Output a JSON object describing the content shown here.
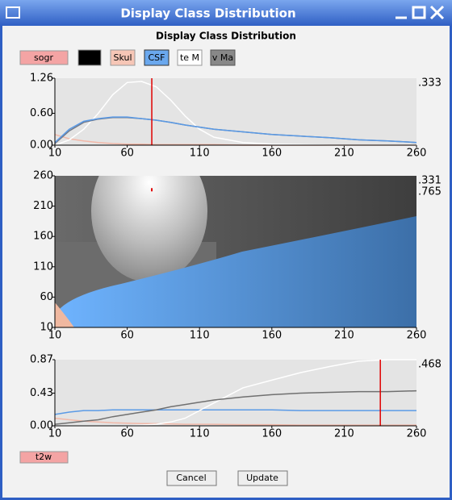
{
  "window": {
    "title": "Display Class Distribution"
  },
  "header": {
    "title": "Display Class Distribution"
  },
  "toolbar": {
    "left_button": "sogr",
    "class_buttons": [
      "Skul",
      "CSF",
      "te M",
      "v Ma"
    ]
  },
  "bottom_button": "t2w",
  "actions": [
    "Cancel",
    "Update"
  ],
  "chart_data": [
    {
      "type": "line",
      "x": [
        10,
        20,
        30,
        40,
        50,
        60,
        70,
        80,
        90,
        100,
        110,
        120,
        140,
        160,
        180,
        200,
        220,
        240,
        260
      ],
      "series": [
        {
          "color": "#f2b8a8",
          "values": [
            0.2,
            0.12,
            0.08,
            0.05,
            0.03,
            0.02,
            0.02,
            0.01,
            0.01,
            0.01,
            0.01,
            0.01,
            0,
            0,
            0,
            0,
            0,
            0,
            0
          ]
        },
        {
          "color": "#ffffff",
          "values": [
            0,
            0.1,
            0.3,
            0.6,
            0.95,
            1.18,
            1.2,
            1.1,
            0.85,
            0.55,
            0.3,
            0.15,
            0.05,
            0.02,
            0.01,
            0,
            0,
            0,
            0
          ]
        },
        {
          "color": "#707888",
          "values": [
            0.03,
            0.27,
            0.43,
            0.49,
            0.52,
            0.52,
            0.5,
            0.47,
            0.43,
            0.38,
            0.34,
            0.3,
            0.25,
            0.2,
            0.17,
            0.14,
            0.1,
            0.08,
            0.05
          ]
        },
        {
          "color": "#5a9ae6",
          "values": [
            0.05,
            0.3,
            0.45,
            0.5,
            0.53,
            0.53,
            0.5,
            0.47,
            0.43,
            0.38,
            0.34,
            0.3,
            0.25,
            0.2,
            0.17,
            0.14,
            0.1,
            0.08,
            0.05
          ]
        }
      ],
      "marker_x": 77,
      "marker_color": "#e00000",
      "xlim": [
        10,
        260
      ],
      "xticks": [
        10,
        60,
        110,
        160,
        210,
        260
      ],
      "ylim": [
        0,
        1.26
      ],
      "yticks": [
        {
          "value": 0,
          "label": "0.00"
        },
        {
          "value": 0.6,
          "label": "0.60"
        },
        {
          "value": 1.26,
          "label": "1.26"
        }
      ],
      "right_labels": [
        ".333"
      ]
    },
    {
      "type": "image",
      "marker": {
        "x": 77,
        "y": 237
      },
      "marker_color": "#e00000",
      "xlim": [
        10,
        260
      ],
      "xticks": [
        10,
        60,
        110,
        160,
        210,
        260
      ],
      "ylim": [
        10,
        260
      ],
      "yticks": [
        10,
        60,
        110,
        160,
        210,
        260
      ],
      "right_labels": [
        ".331",
        ".765"
      ]
    },
    {
      "type": "line",
      "x": [
        10,
        20,
        30,
        40,
        50,
        60,
        70,
        80,
        90,
        100,
        110,
        120,
        140,
        160,
        180,
        200,
        220,
        240,
        260
      ],
      "series": [
        {
          "color": "#f2b8a8",
          "values": [
            0.1,
            0.08,
            0.06,
            0.05,
            0.04,
            0.035,
            0.03,
            0.03,
            0.025,
            0.02,
            0.02,
            0.02,
            0.015,
            0.015,
            0.01,
            0.01,
            0.01,
            0.01,
            0.01
          ]
        },
        {
          "color": "#5a9ae6",
          "values": [
            0.15,
            0.18,
            0.2,
            0.2,
            0.21,
            0.21,
            0.21,
            0.21,
            0.21,
            0.21,
            0.21,
            0.21,
            0.21,
            0.21,
            0.2,
            0.2,
            0.2,
            0.2,
            0.2
          ]
        },
        {
          "color": "#ffffff",
          "values": [
            0,
            0,
            0,
            0,
            0,
            0,
            0.01,
            0.02,
            0.05,
            0.1,
            0.2,
            0.3,
            0.5,
            0.6,
            0.7,
            0.78,
            0.85,
            0.87,
            0.87
          ]
        },
        {
          "color": "#707070",
          "values": [
            0.02,
            0.04,
            0.06,
            0.08,
            0.12,
            0.15,
            0.18,
            0.21,
            0.25,
            0.28,
            0.31,
            0.34,
            0.38,
            0.41,
            0.43,
            0.44,
            0.45,
            0.45,
            0.46
          ]
        }
      ],
      "marker_x": 235,
      "marker_color": "#e00000",
      "xlim": [
        10,
        260
      ],
      "xticks": [
        10,
        60,
        110,
        160,
        210,
        260
      ],
      "ylim": [
        0,
        0.87
      ],
      "yticks": [
        {
          "value": 0,
          "label": "0.00"
        },
        {
          "value": 0.43,
          "label": "0.43"
        },
        {
          "value": 0.87,
          "label": "0.87"
        }
      ],
      "right_labels": [
        ".468"
      ]
    }
  ]
}
